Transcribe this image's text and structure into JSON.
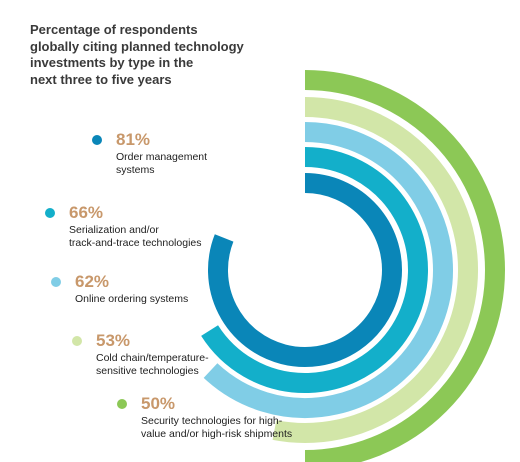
{
  "title": "Percentage of respondents\nglobally citing planned technology\ninvestments by type  in the\nnext three to five years",
  "chart_data": {
    "type": "radial-bar",
    "title": "Percentage of respondents globally citing planned technology investments by type  in the next three to five years",
    "categories": [
      "Order management systems",
      "Serialization and/or track-and-trace technologies",
      "Online ordering systems",
      "Cold chain/temperature-sensitive technologies",
      "Security technologies for high-value and/or high-risk shipments"
    ],
    "values": [
      81,
      66,
      62,
      53,
      50
    ],
    "unit": "%"
  },
  "legend": [
    {
      "pct": "81%",
      "label": "Order management\nsystems",
      "color": "#0a86b8"
    },
    {
      "pct": "66%",
      "label": "Serialization and/or\ntrack-and-trace technologies",
      "color": "#13afca"
    },
    {
      "pct": "62%",
      "label": "Online ordering systems",
      "color": "#80cde6"
    },
    {
      "pct": "53%",
      "label": "Cold chain/temperature-\nsensitive technologies",
      "color": "#d2e6a8"
    },
    {
      "pct": "50%",
      "label": "Security technologies for high-\nvalue and/or high-risk shipments",
      "color": "#8cc856"
    }
  ]
}
